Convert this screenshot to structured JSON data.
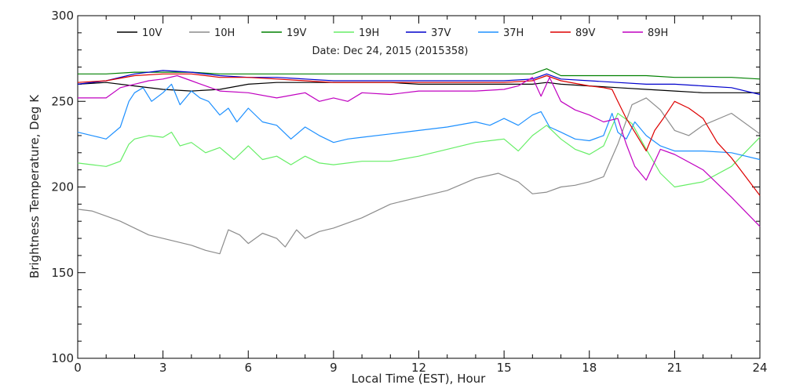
{
  "chart_data": {
    "type": "line",
    "subtitle": "Date: Dec 24, 2015 (2015358)",
    "xlabel": "Local Time (EST), Hour",
    "ylabel": "Brightness Temperature, Deg K",
    "xlim": [
      0,
      24
    ],
    "ylim": [
      100,
      300
    ],
    "xticks": [
      0,
      3,
      6,
      9,
      12,
      15,
      18,
      21,
      24
    ],
    "yticks": [
      100,
      150,
      200,
      250,
      300
    ],
    "grid": false,
    "legend_position": "top",
    "series": [
      {
        "name": "10V",
        "color": "#000000",
        "x": [
          0,
          1,
          2,
          3,
          4,
          5,
          6,
          7,
          8,
          9,
          10,
          11,
          12,
          13,
          14,
          15,
          16,
          16.5,
          17,
          18,
          19,
          20,
          21,
          22,
          23,
          24
        ],
        "y": [
          260,
          261,
          259,
          257,
          256,
          257,
          260,
          261,
          261,
          261,
          261,
          261,
          260,
          260,
          260,
          260,
          260,
          261,
          260,
          259,
          258,
          257,
          256,
          255,
          255,
          255
        ]
      },
      {
        "name": "10H",
        "color": "#8c8c8c",
        "x": [
          0,
          0.5,
          1,
          1.5,
          2,
          2.5,
          3,
          3.5,
          4,
          4.5,
          5,
          5.3,
          5.7,
          6,
          6.5,
          7,
          7.3,
          7.7,
          8,
          8.5,
          9,
          10,
          11,
          12,
          13,
          14,
          14.8,
          15.5,
          16,
          16.5,
          17,
          17.5,
          18,
          18.5,
          19,
          19.5,
          20,
          20.5,
          21,
          21.5,
          22,
          23,
          24
        ],
        "y": [
          187,
          186,
          183,
          180,
          176,
          172,
          170,
          168,
          166,
          163,
          161,
          175,
          172,
          167,
          173,
          170,
          165,
          175,
          170,
          174,
          176,
          182,
          190,
          194,
          198,
          205,
          208,
          203,
          196,
          197,
          200,
          201,
          203,
          206,
          225,
          248,
          252,
          245,
          233,
          230,
          236,
          243,
          231
        ]
      },
      {
        "name": "19V",
        "color": "#008000",
        "x": [
          0,
          1,
          2,
          3,
          4,
          5,
          6,
          7,
          8,
          9,
          10,
          11,
          12,
          13,
          14,
          15,
          16,
          16.5,
          17,
          18,
          19,
          20,
          21,
          22,
          23,
          24
        ],
        "y": [
          266,
          266,
          267,
          267,
          267,
          266,
          266,
          266,
          266,
          266,
          266,
          266,
          266,
          266,
          266,
          266,
          266,
          269,
          265,
          265,
          265,
          265,
          264,
          264,
          264,
          263
        ]
      },
      {
        "name": "19H",
        "color": "#66ee66",
        "x": [
          0,
          0.5,
          1,
          1.5,
          1.8,
          2,
          2.5,
          3,
          3.3,
          3.6,
          4,
          4.5,
          5,
          5.5,
          6,
          6.5,
          7,
          7.5,
          8,
          8.5,
          9,
          10,
          11,
          12,
          13,
          14,
          15,
          15.5,
          16,
          16.5,
          17,
          17.5,
          18,
          18.5,
          19,
          19.5,
          20,
          20.5,
          21,
          22,
          23,
          24
        ],
        "y": [
          214,
          213,
          212,
          215,
          225,
          228,
          230,
          229,
          232,
          224,
          226,
          220,
          223,
          216,
          224,
          216,
          218,
          213,
          218,
          214,
          213,
          215,
          215,
          218,
          222,
          226,
          228,
          221,
          230,
          236,
          228,
          222,
          219,
          224,
          243,
          237,
          222,
          208,
          200,
          203,
          212,
          229
        ]
      },
      {
        "name": "37V",
        "color": "#0000cc",
        "x": [
          0,
          1,
          2,
          3,
          4,
          5,
          6,
          7,
          8,
          9,
          10,
          11,
          12,
          13,
          14,
          15,
          16,
          16.5,
          17,
          18,
          19,
          20,
          21,
          22,
          23,
          24
        ],
        "y": [
          260,
          262,
          266,
          268,
          267,
          265,
          264,
          264,
          263,
          262,
          262,
          262,
          262,
          262,
          262,
          262,
          263,
          266,
          263,
          262,
          261,
          260,
          260,
          259,
          258,
          254
        ]
      },
      {
        "name": "37H",
        "color": "#1e90ff",
        "x": [
          0,
          0.5,
          1,
          1.5,
          1.8,
          2,
          2.3,
          2.6,
          3,
          3.3,
          3.6,
          4,
          4.3,
          4.6,
          5,
          5.3,
          5.6,
          6,
          6.5,
          7,
          7.5,
          8,
          8.5,
          9,
          9.5,
          10,
          11,
          12,
          13,
          14,
          14.5,
          15,
          15.5,
          16,
          16.3,
          16.6,
          17,
          17.5,
          18,
          18.5,
          18.8,
          19,
          19.3,
          19.6,
          20,
          20.5,
          21,
          22,
          23,
          24
        ],
        "y": [
          232,
          230,
          228,
          235,
          250,
          255,
          258,
          250,
          255,
          260,
          248,
          256,
          252,
          250,
          242,
          246,
          238,
          246,
          238,
          236,
          228,
          235,
          230,
          226,
          228,
          229,
          231,
          233,
          235,
          238,
          236,
          240,
          236,
          242,
          244,
          235,
          232,
          228,
          227,
          230,
          243,
          232,
          228,
          238,
          230,
          224,
          221,
          221,
          220,
          216
        ]
      },
      {
        "name": "89V",
        "color": "#dd0000",
        "x": [
          0,
          1,
          2,
          3,
          4,
          5,
          6,
          7,
          8,
          9,
          10,
          11,
          12,
          13,
          14,
          15,
          16,
          16.5,
          17,
          18,
          18.5,
          18.8,
          19,
          19.3,
          19.6,
          20,
          20.3,
          20.6,
          21,
          21.5,
          22,
          22.5,
          23,
          24
        ],
        "y": [
          261,
          262,
          265,
          266,
          266,
          264,
          264,
          263,
          262,
          261,
          261,
          261,
          261,
          261,
          261,
          261,
          262,
          265,
          262,
          259,
          258,
          257,
          250,
          240,
          232,
          221,
          233,
          240,
          250,
          246,
          240,
          226,
          217,
          195
        ]
      },
      {
        "name": "89H",
        "color": "#c000c0",
        "x": [
          0,
          1,
          1.5,
          2,
          2.5,
          3,
          3.5,
          4,
          4.5,
          5,
          6,
          7,
          8,
          8.5,
          9,
          9.5,
          10,
          11,
          12,
          13,
          14,
          15,
          15.5,
          16,
          16.3,
          16.6,
          17,
          17.5,
          18,
          18.5,
          19,
          19.3,
          19.6,
          20,
          20.5,
          21,
          22,
          23,
          24
        ],
        "y": [
          252,
          252,
          258,
          260,
          262,
          263,
          265,
          262,
          259,
          256,
          255,
          252,
          255,
          250,
          252,
          250,
          255,
          254,
          256,
          256,
          256,
          257,
          259,
          264,
          253,
          264,
          250,
          245,
          242,
          238,
          240,
          225,
          212,
          204,
          222,
          219,
          210,
          194,
          177
        ]
      }
    ]
  }
}
